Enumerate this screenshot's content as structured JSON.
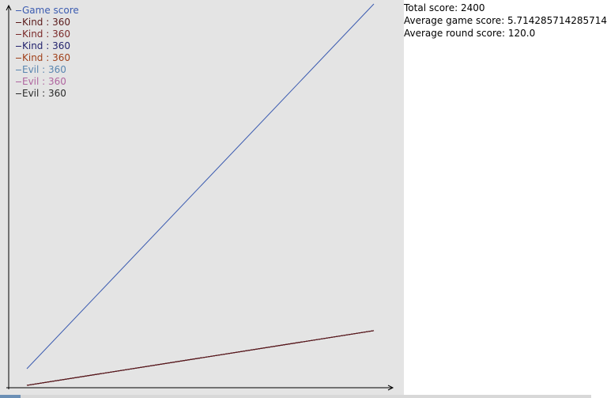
{
  "legend": [
    {
      "label": "Game score",
      "color": "#3b5bb0"
    },
    {
      "label": "Kind : 360",
      "color": "#5a1a1a"
    },
    {
      "label": "Kind : 360",
      "color": "#7a2a2a"
    },
    {
      "label": "Kind : 360",
      "color": "#24246e"
    },
    {
      "label": "Kind : 360",
      "color": "#a0401a"
    },
    {
      "label": "Evil : 360",
      "color": "#5a86b0"
    },
    {
      "label": "Evil : 360",
      "color": "#b066a0"
    },
    {
      "label": "Evil : 360",
      "color": "#2a2a2a"
    }
  ],
  "stats": {
    "total_score": "Total score: 2400",
    "average_game_score": "Average game score: 5.714285714285714",
    "average_round_score": "Average round score: 120.0"
  },
  "chart_data": {
    "type": "line",
    "series": [
      {
        "name": "Game score",
        "color": "#3b5bb0",
        "values": [
          0,
          2400
        ]
      },
      {
        "name": "Kind : 360",
        "color": "#5a1a1a",
        "values": [
          0,
          360
        ]
      },
      {
        "name": "Kind : 360",
        "color": "#7a2a2a",
        "values": [
          0,
          360
        ]
      },
      {
        "name": "Kind : 360",
        "color": "#24246e",
        "values": [
          0,
          360
        ]
      },
      {
        "name": "Kind : 360",
        "color": "#a0401a",
        "values": [
          0,
          360
        ]
      },
      {
        "name": "Evil : 360",
        "color": "#5a86b0",
        "values": [
          0,
          360
        ]
      },
      {
        "name": "Evil : 360",
        "color": "#b066a0",
        "values": [
          0,
          360
        ]
      },
      {
        "name": "Evil : 360",
        "color": "#2a2a2a",
        "values": [
          0,
          360
        ]
      }
    ],
    "ylim": [
      0,
      2400
    ],
    "grid": false,
    "legend_position": "top-left"
  }
}
